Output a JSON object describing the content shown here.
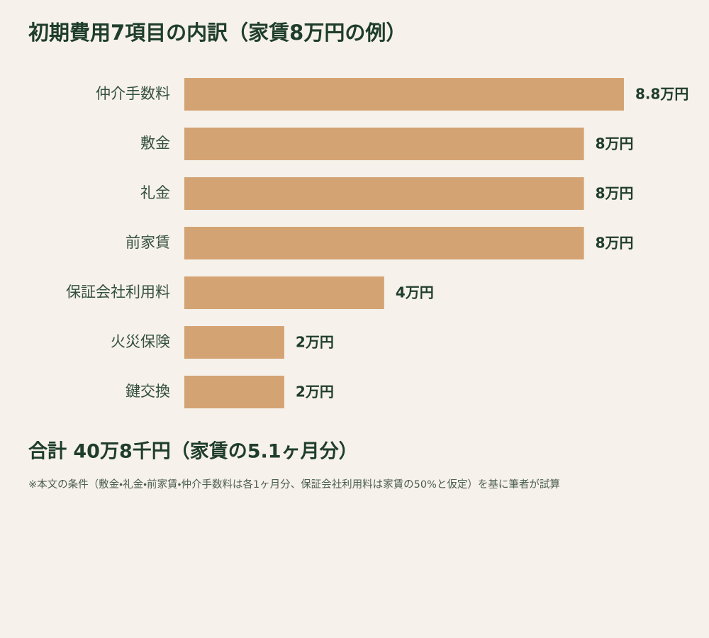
{
  "chart_data": {
    "type": "hbar",
    "title": "初期費用7項目の内訳（家賃8万円の例）",
    "categories": [
      "仲介手数料",
      "敷金",
      "礼金",
      "前家賃",
      "保証会社利用料",
      "火災保険",
      "鍵交換"
    ],
    "values": [
      8.8,
      8,
      8,
      8,
      4,
      2,
      2
    ],
    "value_labels": [
      "8.8万円",
      "8万円",
      "8万円",
      "8万円",
      "4万円",
      "2万円",
      "2万円"
    ],
    "color": "#d4a373",
    "xlim": [
      0,
      8.8
    ],
    "total": "合計 40万8千円（家賃の5.1ヶ月分）",
    "note": "※本文の条件（敷金・礼金・前家賃・仲介手数料は各1ヶ月分、保証会社利用料は家賃の50%と仮定）を基に筆者が試算"
  }
}
